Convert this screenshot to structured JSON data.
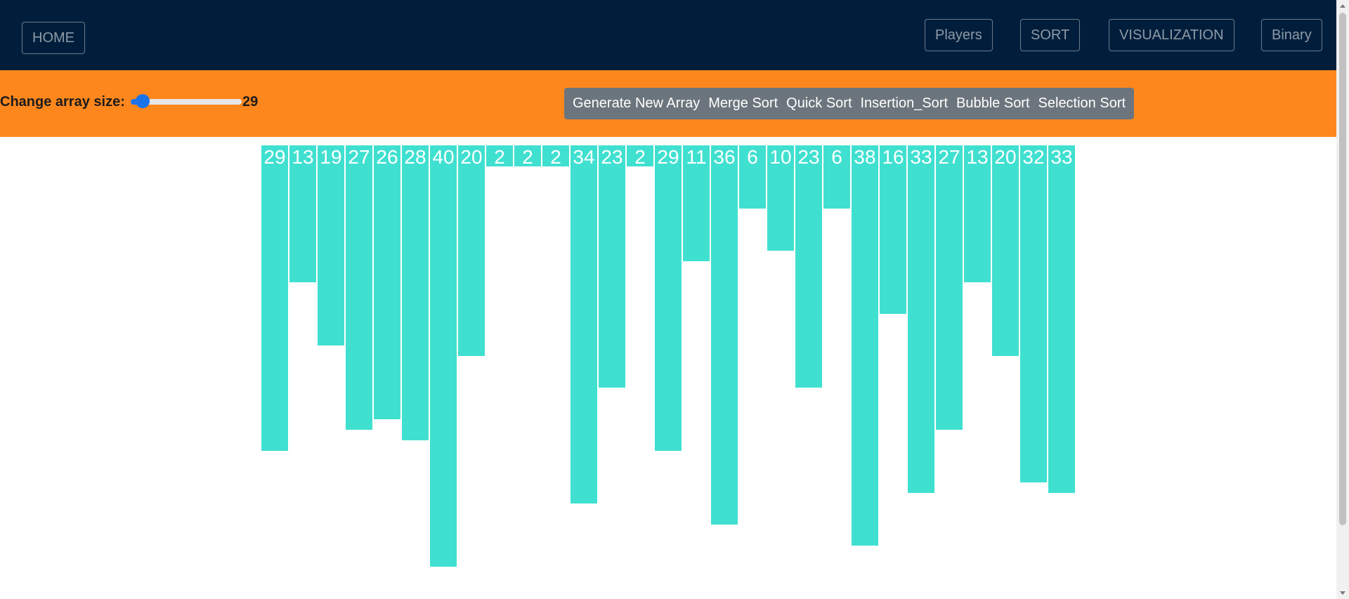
{
  "navbar": {
    "home_label": "HOME",
    "links": [
      "Players",
      "SORT",
      "VISUALIZATION",
      "Binary"
    ]
  },
  "controls": {
    "size_label": "Change array size:",
    "size_value": "29",
    "slider_fraction": 0.08,
    "algorithms": [
      "Generate New Array",
      "Merge Sort",
      "Quick Sort",
      "Insertion_Sort",
      "Bubble Sort",
      "Selection Sort"
    ]
  },
  "array": {
    "values": [
      29,
      13,
      19,
      27,
      26,
      28,
      40,
      20,
      2,
      2,
      2,
      34,
      23,
      2,
      29,
      11,
      36,
      6,
      10,
      23,
      6,
      38,
      16,
      33,
      27,
      13,
      20,
      32,
      33
    ],
    "bar_color": "#40e0d0"
  },
  "colors": {
    "navbar": "#001e3c",
    "controls": "#fe871d",
    "button_group": "#6c757d",
    "slider": "#1a73e8"
  }
}
